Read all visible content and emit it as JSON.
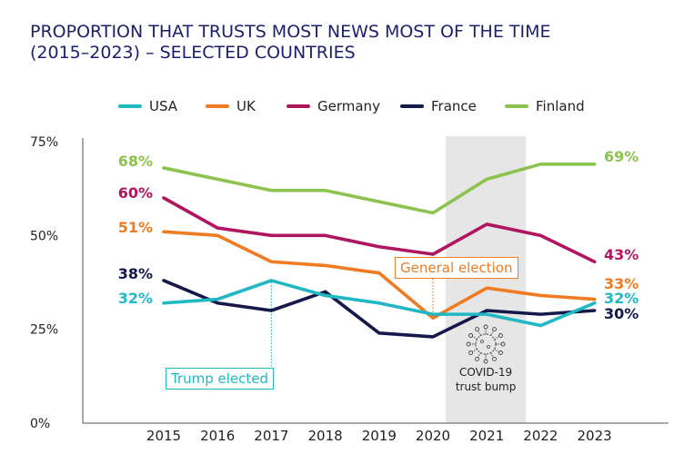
{
  "title_line1": "PROPORTION THAT TRUSTS MOST NEWS MOST OF THE TIME",
  "title_line2": "(2015–2023) – SELECTED COUNTRIES",
  "colors": {
    "title": "#1d1f6b",
    "USA": "#1fb8c3",
    "UK": "#ef7b22",
    "Germany": "#b0155f",
    "France": "#15194a",
    "Finland": "#8cc34f",
    "shade": "#e6e6e6"
  },
  "chart_data": {
    "type": "line",
    "x": [
      "2015",
      "2016",
      "2017",
      "2018",
      "2019",
      "2020",
      "2021",
      "2022",
      "2023"
    ],
    "ylim": [
      0,
      75
    ],
    "yticks": [
      "0%",
      "25%",
      "50%",
      "75%"
    ],
    "yticks_values": [
      0,
      25,
      50,
      75
    ],
    "legend_position": "top",
    "grid": false,
    "series": [
      {
        "name": "USA",
        "values": [
          32,
          33,
          38,
          34,
          32,
          29,
          29,
          26,
          32
        ],
        "start_label": "32%",
        "end_label": "32%"
      },
      {
        "name": "UK",
        "values": [
          51,
          50,
          43,
          42,
          40,
          28,
          36,
          34,
          33
        ],
        "start_label": "51%",
        "end_label": "33%"
      },
      {
        "name": "Germany",
        "values": [
          60,
          52,
          50,
          50,
          47,
          45,
          53,
          50,
          43
        ],
        "start_label": "60%",
        "end_label": "43%"
      },
      {
        "name": "France",
        "values": [
          38,
          32,
          30,
          35,
          24,
          23,
          30,
          29,
          30
        ],
        "start_label": "38%",
        "end_label": "30%"
      },
      {
        "name": "Finland",
        "values": [
          68,
          65,
          62,
          62,
          59,
          56,
          65,
          69,
          69
        ],
        "start_label": "68%",
        "end_label": "69%"
      }
    ],
    "annotations": {
      "trump": {
        "text": "Trump elected",
        "x": "2017",
        "series": "USA"
      },
      "election": {
        "text": "General election",
        "x": "2020",
        "series": "UK"
      },
      "covid": {
        "line1": "COVID-19",
        "line2": "trust bump",
        "x_from": "2020",
        "x_to": "2021"
      }
    }
  }
}
